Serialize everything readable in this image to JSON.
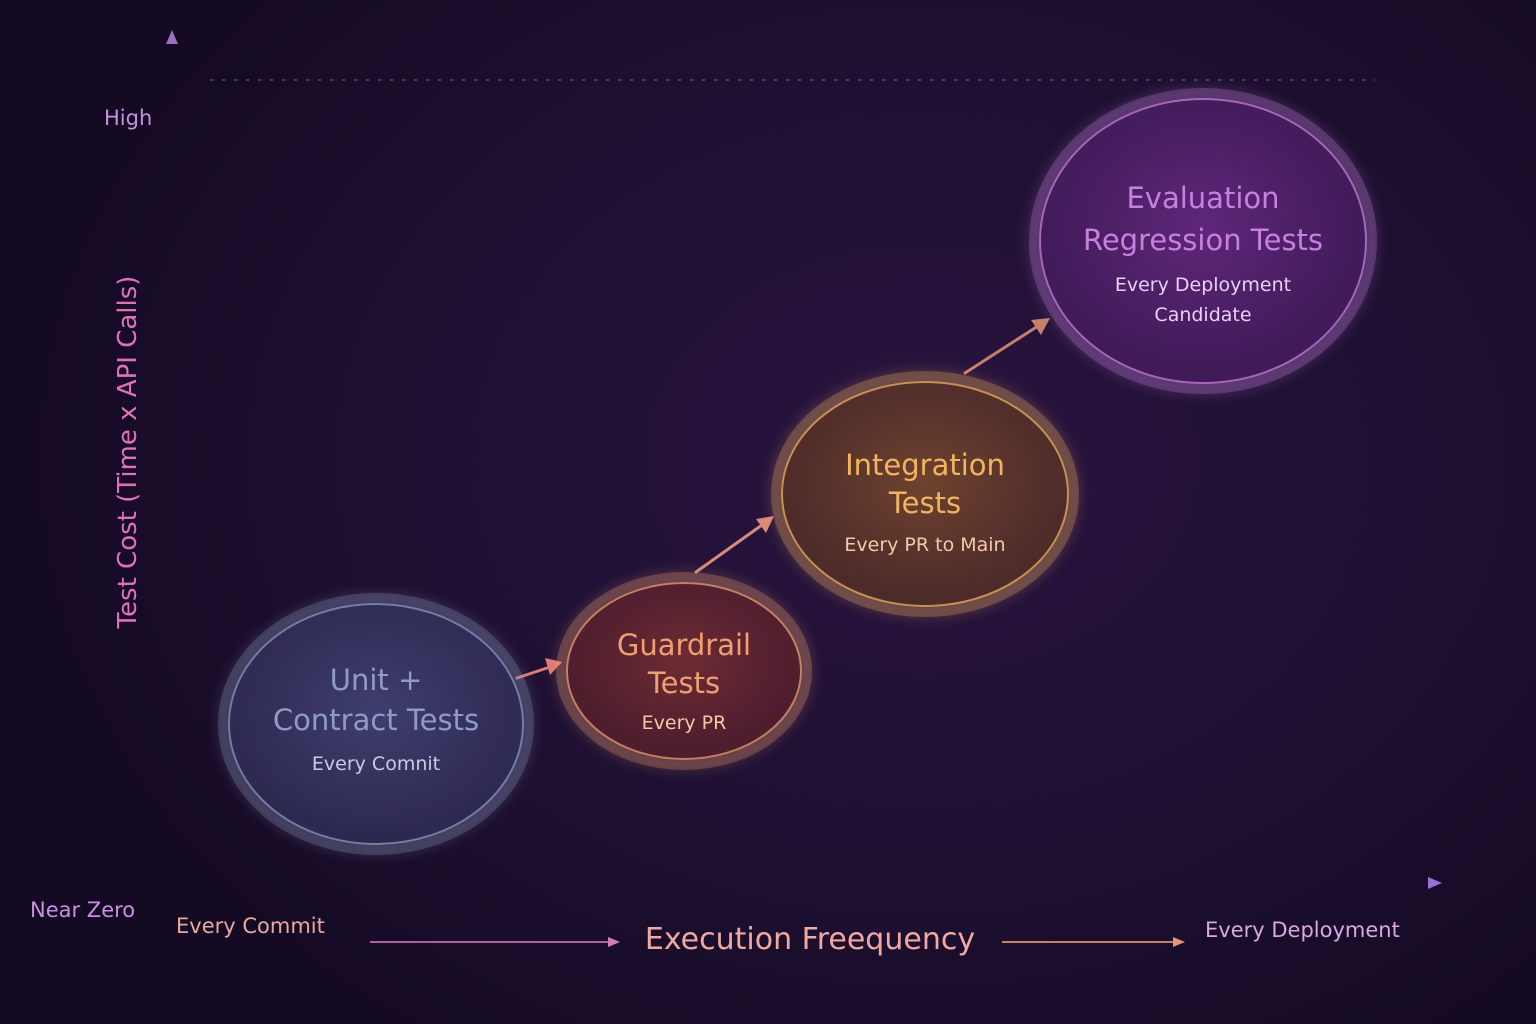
{
  "y_axis": {
    "label": "Test Cost (Time x API Calls)",
    "high_label": "High",
    "low_label": "Near Zero"
  },
  "x_axis": {
    "label": "Execution Freequency",
    "start_label": "Every Commit",
    "end_label": "Every Deployment"
  },
  "stages": [
    {
      "title_lines": [
        "Unit +",
        "Contract Tests"
      ],
      "subtitle_lines": [
        "Every Comnit"
      ],
      "color": "#8f9bc4",
      "fill": "#3a3866"
    },
    {
      "title_lines": [
        "Guardrail",
        "Tests"
      ],
      "subtitle_lines": [
        "Every PR"
      ],
      "color": "#f0a070",
      "fill": "#6a2630"
    },
    {
      "title_lines": [
        "Integration",
        "Tests"
      ],
      "subtitle_lines": [
        "Every PR to Main"
      ],
      "color": "#f2b45c",
      "fill": "#6a3a28"
    },
    {
      "title_lines": [
        "Evaluation",
        "Regression Tests"
      ],
      "subtitle_lines": [
        "Every Deployment",
        "Candidate"
      ],
      "color": "#c880e0",
      "fill": "#55236e"
    }
  ],
  "colors": {
    "axis": "#a070c0",
    "y_label": "#e070b8",
    "tick_text": "#c890e0",
    "x_text": "#e8a8a0"
  }
}
